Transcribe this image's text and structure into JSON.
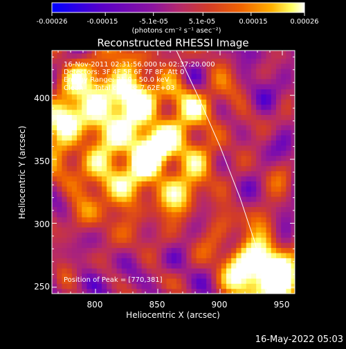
{
  "colorbar": {
    "tick_labels": [
      "-0.00026",
      "-0.00015",
      "-5.1e-05",
      "5.1e-05",
      "0.00015",
      "0.00026"
    ],
    "unit_label": "(photons cm⁻² s⁻¹ asec⁻²)",
    "range": [
      -0.00026,
      0.00026
    ]
  },
  "chart_data": {
    "type": "heatmap",
    "title": "Reconstructed RHESSI Image",
    "xlabel": "Heliocentric X (arcsec)",
    "ylabel": "Heliocentric Y (arcsec)",
    "xlim": [
      765,
      960
    ],
    "ylim": [
      245,
      435
    ],
    "x_ticks": [
      "800",
      "850",
      "900",
      "950"
    ],
    "y_ticks": [
      "250",
      "300",
      "350",
      "400"
    ],
    "annotations": [
      "16-Nov-2011 02:31:56.000 to 02:37:20.000",
      "Detectors: 3F 4F 5F 6F 7F 8F, Att 0",
      "Energy Range: 25.0 - 50.0 keV",
      "Clean     Total counts: 7.62E+03"
    ],
    "peak_label": "Position of Peak = [770,381]",
    "peak_position": [
      770,
      381
    ],
    "limb_curve": {
      "x": [
        865,
        882,
        900,
        916,
        928,
        937
      ],
      "y": [
        435,
        400,
        360,
        320,
        285,
        245
      ]
    }
  },
  "footer": {
    "timestamp": "16-May-2022 05:03"
  },
  "colors": {
    "background": "#000000",
    "colormap": [
      "#0000ff",
      "#5a00c8",
      "#8c14a0",
      "#b4286e",
      "#d23c28",
      "#f06400",
      "#ffb000",
      "#ffff64",
      "#ffffff"
    ]
  }
}
